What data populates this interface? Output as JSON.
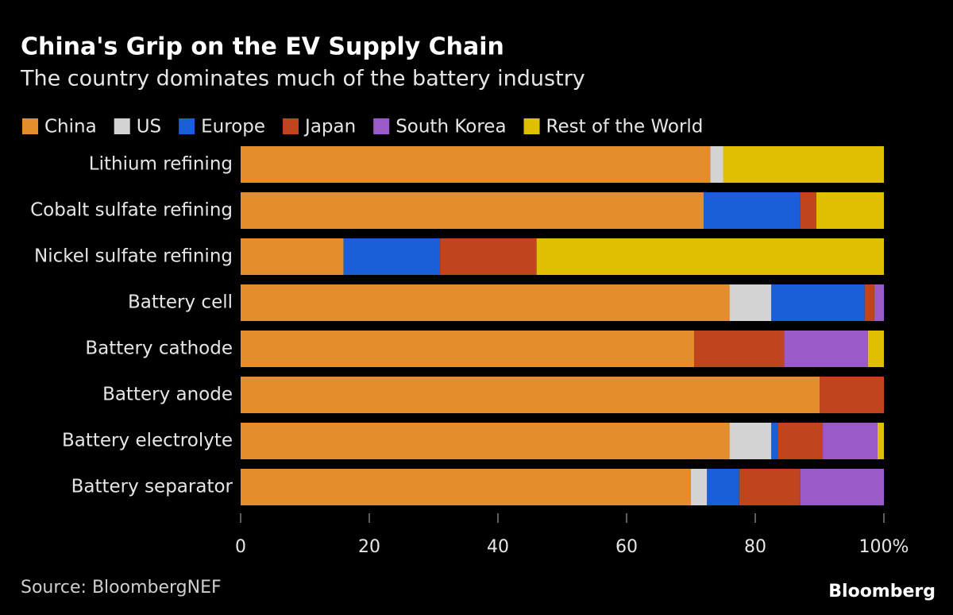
{
  "chart_data": {
    "type": "stacked_bar_horizontal",
    "title": "China's Grip on the EV Supply Chain",
    "subtitle": "The country dominates much of the battery industry",
    "categories": [
      "Lithium refining",
      "Cobalt sulfate refining",
      "Nickel sulfate refining",
      "Battery cell",
      "Battery cathode",
      "Battery anode",
      "Battery electrolyte",
      "Battery separator"
    ],
    "series": [
      {
        "name": "China",
        "color": "#e48d2c",
        "values": [
          73,
          72,
          16,
          76,
          70.5,
          90,
          76,
          70
        ]
      },
      {
        "name": "US",
        "color": "#d3d3d3",
        "values": [
          2,
          0,
          0,
          6.5,
          0,
          0,
          6.5,
          2.5
        ]
      },
      {
        "name": "Europe",
        "color": "#1b5fd8",
        "values": [
          0,
          15,
          15,
          14.5,
          0,
          0,
          1,
          5
        ]
      },
      {
        "name": "Japan",
        "color": "#c0451e",
        "values": [
          0,
          2.5,
          15,
          1.5,
          14,
          10,
          7,
          9.5
        ]
      },
      {
        "name": "South Korea",
        "color": "#9a5ac8",
        "values": [
          0,
          0,
          0,
          1.5,
          13,
          0,
          8.5,
          13
        ]
      },
      {
        "name": "Rest of the World",
        "color": "#dfc000",
        "values": [
          25,
          10.5,
          54,
          0,
          2.5,
          0,
          1,
          0
        ]
      }
    ],
    "xlim": [
      0,
      100
    ],
    "xticks": [
      0,
      20,
      40,
      60,
      80,
      {
        "value": 100,
        "label": "100%"
      }
    ],
    "source": "Source: BloombergNEF",
    "logo": "Bloomberg"
  }
}
